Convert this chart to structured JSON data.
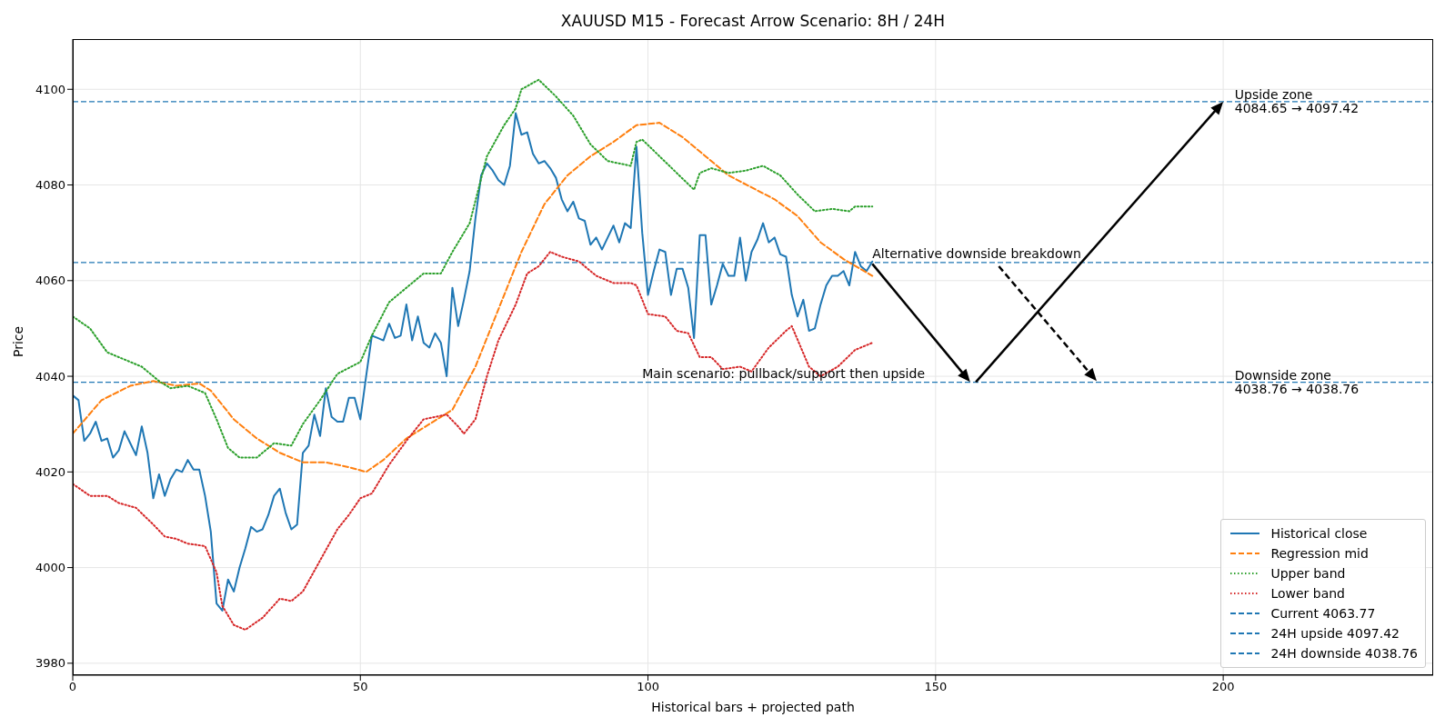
{
  "chart_data": {
    "type": "line",
    "title": "XAUUSD M15 - Forecast Arrow Scenario: 8H / 24H",
    "xlabel": "Historical bars + projected path",
    "ylabel": "Price",
    "xlim": [
      0,
      236.5
    ],
    "ylim": [
      3977.5,
      4110.5
    ],
    "xticks": [
      0,
      50,
      100,
      150,
      200
    ],
    "yticks": [
      3980,
      4000,
      4020,
      4040,
      4060,
      4080,
      4100
    ],
    "grid": true,
    "legend": "bottom right",
    "series": [
      {
        "name": "Historical close",
        "color": "#1f77b4",
        "line_style": "solid",
        "x": [
          0,
          1,
          2,
          3,
          4,
          5,
          6,
          7,
          8,
          9,
          10,
          11,
          12,
          13,
          14,
          15,
          16,
          17,
          18,
          19,
          20,
          21,
          22,
          23,
          24,
          25,
          26,
          27,
          28,
          29,
          30,
          31,
          32,
          33,
          34,
          35,
          36,
          37,
          38,
          39,
          40,
          41,
          42,
          43,
          44,
          45,
          46,
          47,
          48,
          49,
          50,
          51,
          52,
          53,
          54,
          55,
          56,
          57,
          58,
          59,
          60,
          61,
          62,
          63,
          64,
          65,
          66,
          67,
          68,
          69,
          70,
          71,
          72,
          73,
          74,
          75,
          76,
          77,
          78,
          79,
          80,
          81,
          82,
          83,
          84,
          85,
          86,
          87,
          88,
          89,
          90,
          91,
          92,
          93,
          94,
          95,
          96,
          97,
          98,
          99,
          100,
          101,
          102,
          103,
          104,
          105,
          106,
          107,
          108,
          109,
          110,
          111,
          112,
          113,
          114,
          115,
          116,
          117,
          118,
          119,
          120,
          121,
          122,
          123,
          124,
          125,
          126,
          127,
          128,
          129,
          130,
          131,
          132,
          133,
          134,
          135,
          136,
          137,
          138,
          139
        ],
        "values": [
          4036,
          4035,
          4026.5,
          4028,
          4030.5,
          4026.5,
          4027,
          4023,
          4024.5,
          4028.5,
          4026,
          4023.5,
          4029.5,
          4024,
          4014.5,
          4019.5,
          4015,
          4018.5,
          4020.5,
          4020,
          4022.5,
          4020.5,
          4020.5,
          4015,
          4007.5,
          3992.5,
          3991,
          3997.5,
          3995,
          4000,
          4004,
          4008.5,
          4007.5,
          4008,
          4011,
          4015,
          4016.5,
          4011.5,
          4008,
          4009,
          4024,
          4025.5,
          4032,
          4027.5,
          4037.5,
          4031.5,
          4030.5,
          4030.5,
          4035.5,
          4035.5,
          4031,
          4040,
          4048.5,
          4048,
          4047.5,
          4051,
          4048,
          4048.5,
          4055,
          4047.5,
          4052.5,
          4047,
          4046,
          4049,
          4047,
          4040,
          4058.5,
          4050.5,
          4056,
          4062,
          4073,
          4082,
          4084.5,
          4083,
          4081,
          4080,
          4084,
          4095,
          4090.5,
          4091,
          4086.5,
          4084.5,
          4085,
          4083.5,
          4081.5,
          4077,
          4074.5,
          4076.5,
          4073,
          4072.5,
          4067.5,
          4069,
          4066.5,
          4069,
          4071.5,
          4068,
          4072,
          4071,
          4088,
          4070,
          4057,
          4062,
          4066.5,
          4066,
          4057,
          4062.5,
          4062.5,
          4058.5,
          4048,
          4069.5,
          4069.5,
          4055,
          4059,
          4063.5,
          4061,
          4061,
          4069,
          4060,
          4066,
          4068.5,
          4072,
          4068,
          4069,
          4065.5,
          4065,
          4057,
          4052.5,
          4056,
          4049.5,
          4050,
          4055,
          4059,
          4061,
          4061,
          4062,
          4059,
          4066,
          4063,
          4062,
          4064
        ]
      },
      {
        "name": "Regression mid",
        "color": "#ff7f0e",
        "line_style": "dashed",
        "x": [
          0,
          5,
          10,
          14,
          18,
          22,
          24,
          28,
          32,
          36,
          40,
          44,
          48,
          51,
          54,
          58,
          62,
          66,
          70,
          74,
          78,
          82,
          86,
          90,
          94,
          98,
          102,
          106,
          110,
          114,
          118,
          122,
          126,
          130,
          134,
          139
        ],
        "values": [
          4028,
          4035,
          4038,
          4039,
          4038,
          4038.5,
          4037,
          4031,
          4027,
          4024,
          4022,
          4022,
          4021,
          4020,
          4022.5,
          4027,
          4030,
          4033,
          4042,
          4054,
          4066,
          4076,
          4082,
          4086,
          4089,
          4092.5,
          4093,
          4090,
          4086,
          4082,
          4079.5,
          4077,
          4073.5,
          4068,
          4064.5,
          4061
        ]
      },
      {
        "name": "Upper band",
        "color": "#2ca02c",
        "line_style": "dotted",
        "x": [
          0,
          3,
          6,
          9,
          12,
          15,
          17,
          20,
          23,
          25,
          27,
          29,
          32,
          35,
          38,
          40,
          43,
          46,
          50,
          52,
          55,
          58,
          61,
          64,
          66,
          69,
          72,
          75,
          77,
          78,
          81,
          84,
          87,
          90,
          93,
          97,
          98,
          99,
          102,
          105,
          108,
          109,
          111,
          114,
          117,
          120,
          123,
          126,
          129,
          132,
          135,
          136,
          139
        ],
        "values": [
          4052.5,
          4050,
          4045,
          4043.5,
          4042,
          4039,
          4037.5,
          4038,
          4036.5,
          4031,
          4025,
          4023,
          4023,
          4026,
          4025.5,
          4030,
          4035,
          4040.5,
          4043,
          4048.5,
          4055.5,
          4058.5,
          4061.5,
          4061.5,
          4066,
          4072,
          4086,
          4092.5,
          4096,
          4100,
          4102,
          4098.5,
          4094.5,
          4088.5,
          4085,
          4084,
          4089,
          4089.5,
          4086,
          4082.5,
          4079,
          4082.5,
          4083.5,
          4082.5,
          4083,
          4084,
          4082,
          4078,
          4074.5,
          4075,
          4074.5,
          4075.5,
          4075.5
        ]
      },
      {
        "name": "Lower band",
        "color": "#d62728",
        "line_style": "dotted",
        "x": [
          0,
          3,
          6,
          8,
          11,
          14,
          16,
          18,
          20,
          23,
          25,
          26,
          28,
          30,
          33,
          36,
          38,
          40,
          43,
          46,
          48,
          50,
          52,
          55,
          58,
          61,
          63,
          65,
          67,
          68,
          70,
          72,
          74,
          77,
          79,
          81,
          83,
          85,
          88,
          91,
          94,
          97,
          98,
          100,
          103,
          105,
          107,
          109,
          111,
          113,
          116,
          118,
          121,
          124,
          125,
          128,
          130,
          133,
          136,
          139
        ],
        "values": [
          4017.5,
          4015,
          4015,
          4013.5,
          4012.5,
          4009,
          4006.5,
          4006,
          4005,
          4004.5,
          3999,
          3992,
          3988,
          3987,
          3989.5,
          3993.5,
          3993,
          3995,
          4001.5,
          4008,
          4011,
          4014.5,
          4015.5,
          4021.5,
          4026.5,
          4031,
          4031.5,
          4032,
          4029.5,
          4028,
          4031,
          4040,
          4047.5,
          4055,
          4061.5,
          4063,
          4066,
          4065,
          4064,
          4061,
          4059.5,
          4059.5,
          4059,
          4053,
          4052.5,
          4049.5,
          4049,
          4044,
          4044,
          4041.5,
          4042,
          4041,
          4046,
          4049.5,
          4050.5,
          4042,
          4040,
          4042,
          4045.5,
          4047
        ]
      }
    ],
    "ref_lines": [
      {
        "axis": "y",
        "value": 4063.77,
        "label": "Current 4063.77",
        "color": "#1f77b4",
        "line_style": "dashed"
      },
      {
        "axis": "y",
        "value": 4097.42,
        "label": "24H upside 4097.42",
        "color": "#1f77b4",
        "line_style": "dashed"
      },
      {
        "axis": "y",
        "value": 4038.76,
        "label": "24H downside 4038.76",
        "color": "#1f77b4",
        "line_style": "dashed"
      }
    ],
    "annotations": [
      {
        "text": "Upside zone\n4084.65 → 4097.42",
        "x": 202,
        "y": 4097.42
      },
      {
        "text": "Downside zone\n4038.76 → 4038.76",
        "x": 202,
        "y": 4038.76
      },
      {
        "text": "Main scenario: pullback/support then upside",
        "x": 99,
        "y": 4038.76
      },
      {
        "text": "Alternative downside breakdown",
        "x": 139,
        "y": 4063.77
      }
    ]
  }
}
